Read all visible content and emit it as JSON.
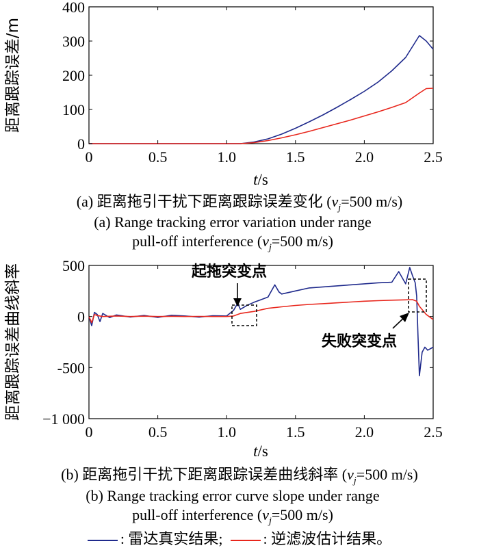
{
  "chart_data": [
    {
      "type": "line",
      "x_ticks": [
        "0",
        "0.5",
        "1.0",
        "1.5",
        "2.0",
        "2.5"
      ],
      "y_ticks": [
        "0",
        "100",
        "200",
        "300",
        "400"
      ],
      "xlim": [
        0,
        2.5
      ],
      "ylim": [
        0,
        400
      ],
      "xlabel_var": "t",
      "xlabel_unit": "/s",
      "ylabel": "距离跟踪误差/m",
      "series": [
        {
          "color": "#1f2a8c",
          "x": [
            0,
            0.5,
            1.0,
            1.1,
            1.2,
            1.3,
            1.4,
            1.5,
            1.6,
            1.7,
            1.8,
            1.9,
            2.0,
            2.1,
            2.2,
            2.3,
            2.4,
            2.45,
            2.5
          ],
          "y": [
            0,
            0,
            0,
            0,
            5,
            14,
            28,
            45,
            64,
            84,
            106,
            129,
            153,
            180,
            213,
            252,
            316,
            300,
            276
          ]
        },
        {
          "color": "#e8261c",
          "x": [
            0,
            0.5,
            1.0,
            1.1,
            1.2,
            1.3,
            1.4,
            1.5,
            1.6,
            1.7,
            1.8,
            1.9,
            2.0,
            2.1,
            2.2,
            2.3,
            2.4,
            2.45,
            2.5
          ],
          "y": [
            0,
            0,
            0,
            0,
            3,
            9,
            17,
            26,
            36,
            47,
            58,
            69,
            81,
            93,
            106,
            120,
            148,
            161,
            162
          ]
        }
      ]
    },
    {
      "type": "line",
      "x_ticks": [
        "0",
        "0.5",
        "1.0",
        "1.5",
        "2.0",
        "2.5"
      ],
      "y_ticks": [
        "500",
        "0",
        "-500",
        "−1 000"
      ],
      "y_tick_values": [
        500,
        0,
        -500,
        -1000
      ],
      "xlim": [
        0,
        2.5
      ],
      "ylim": [
        -1000,
        500
      ],
      "xlabel_var": "t",
      "xlabel_unit": "/s",
      "ylabel": "距离跟踪误差曲线斜率",
      "annotations": [
        "起拖突变点",
        "失败突变点"
      ],
      "series": [
        {
          "color": "#1f2a8c",
          "x": [
            0,
            0.02,
            0.04,
            0.06,
            0.08,
            0.1,
            0.15,
            0.2,
            0.3,
            0.4,
            0.5,
            0.6,
            0.7,
            0.8,
            0.9,
            1.0,
            1.05,
            1.08,
            1.1,
            1.15,
            1.2,
            1.3,
            1.35,
            1.38,
            1.4,
            1.5,
            1.6,
            1.7,
            1.8,
            1.9,
            2.0,
            2.1,
            2.2,
            2.25,
            2.3,
            2.33,
            2.35,
            2.37,
            2.38,
            2.39,
            2.4,
            2.42,
            2.44,
            2.46,
            2.5
          ],
          "y": [
            0,
            -90,
            40,
            20,
            -50,
            30,
            -10,
            15,
            -5,
            10,
            -8,
            12,
            5,
            -6,
            8,
            5,
            60,
            130,
            70,
            110,
            140,
            190,
            310,
            240,
            220,
            250,
            280,
            290,
            300,
            310,
            320,
            330,
            335,
            440,
            320,
            480,
            400,
            330,
            200,
            -200,
            -580,
            -350,
            -300,
            -330,
            -300
          ]
        },
        {
          "color": "#e8261c",
          "x": [
            0,
            0.02,
            0.04,
            0.06,
            0.1,
            0.2,
            0.3,
            0.4,
            0.5,
            0.6,
            0.7,
            0.8,
            0.9,
            1.0,
            1.05,
            1.1,
            1.15,
            1.2,
            1.3,
            1.4,
            1.5,
            1.6,
            1.7,
            1.8,
            1.9,
            2.0,
            2.1,
            2.2,
            2.3,
            2.35,
            2.38,
            2.4,
            2.45,
            2.5
          ],
          "y": [
            0,
            -60,
            20,
            10,
            0,
            5,
            0,
            3,
            0,
            2,
            0,
            1,
            0,
            0,
            5,
            30,
            40,
            50,
            80,
            95,
            108,
            118,
            126,
            134,
            142,
            150,
            155,
            160,
            163,
            165,
            150,
            100,
            20,
            -30
          ]
        }
      ]
    }
  ],
  "captions": {
    "a_cn_prefix": "(a) 距离拖引干扰下距离跟踪误差变化 (",
    "a_cn_var": "v",
    "a_cn_sub": "j",
    "a_cn_suffix": "=500 m/s)",
    "a_en_line1": "(a) Range tracking error variation under range",
    "a_en_line2_prefix": "pull-off interference (",
    "a_en_var": "v",
    "a_en_sub": "j",
    "a_en_line2_suffix": "=500 m/s)",
    "b_cn_prefix": "(b) 距离拖引干扰下距离跟踪误差曲线斜率 (",
    "b_cn_var": "v",
    "b_cn_sub": "j",
    "b_cn_suffix": "=500 m/s)",
    "b_en_line1": "(b) Range tracking error curve slope under range",
    "b_en_line2_prefix": "pull-off interference (",
    "b_en_var": "v",
    "b_en_sub": "j",
    "b_en_line2_suffix": "=500 m/s)"
  },
  "legend": {
    "blue_label": ": 雷达真实结果;",
    "red_label": ": 逆滤波估计结果。",
    "blue_color": "#1f2a8c",
    "red_color": "#e8261c"
  }
}
